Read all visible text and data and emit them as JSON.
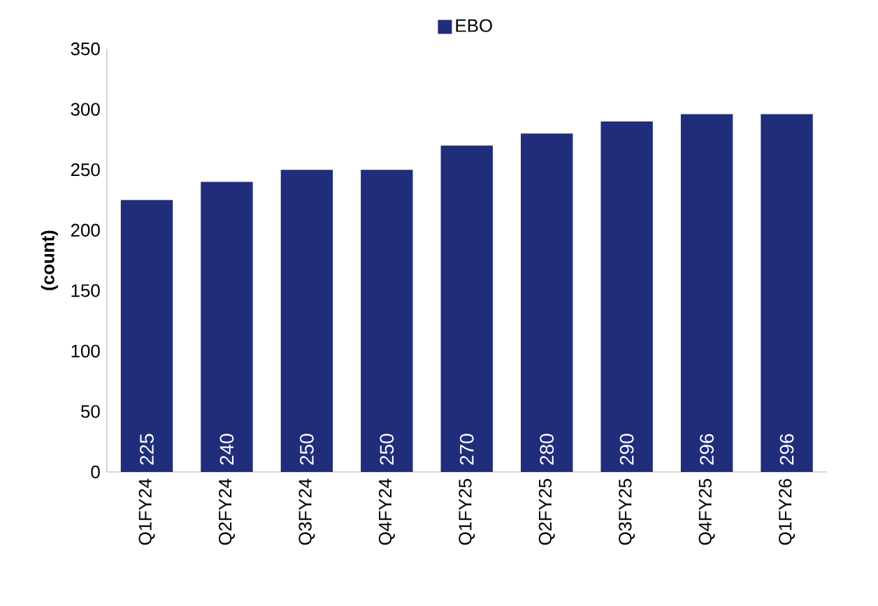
{
  "chart_data": {
    "type": "bar",
    "ylabel": "(count)",
    "categories": [
      "Q1FY24",
      "Q2FY24",
      "Q3FY24",
      "Q4FY24",
      "Q1FY25",
      "Q2FY25",
      "Q3FY25",
      "Q4FY25",
      "Q1FY26"
    ],
    "series": [
      {
        "name": "EBO",
        "color": "#1f2d7b",
        "values": [
          225,
          240,
          250,
          250,
          270,
          280,
          290,
          296,
          296
        ]
      }
    ],
    "ylim": [
      0,
      350
    ],
    "yticks": [
      0,
      50,
      100,
      150,
      200,
      250,
      300,
      350
    ],
    "data_labels": true,
    "legend": "top",
    "grid": false
  }
}
